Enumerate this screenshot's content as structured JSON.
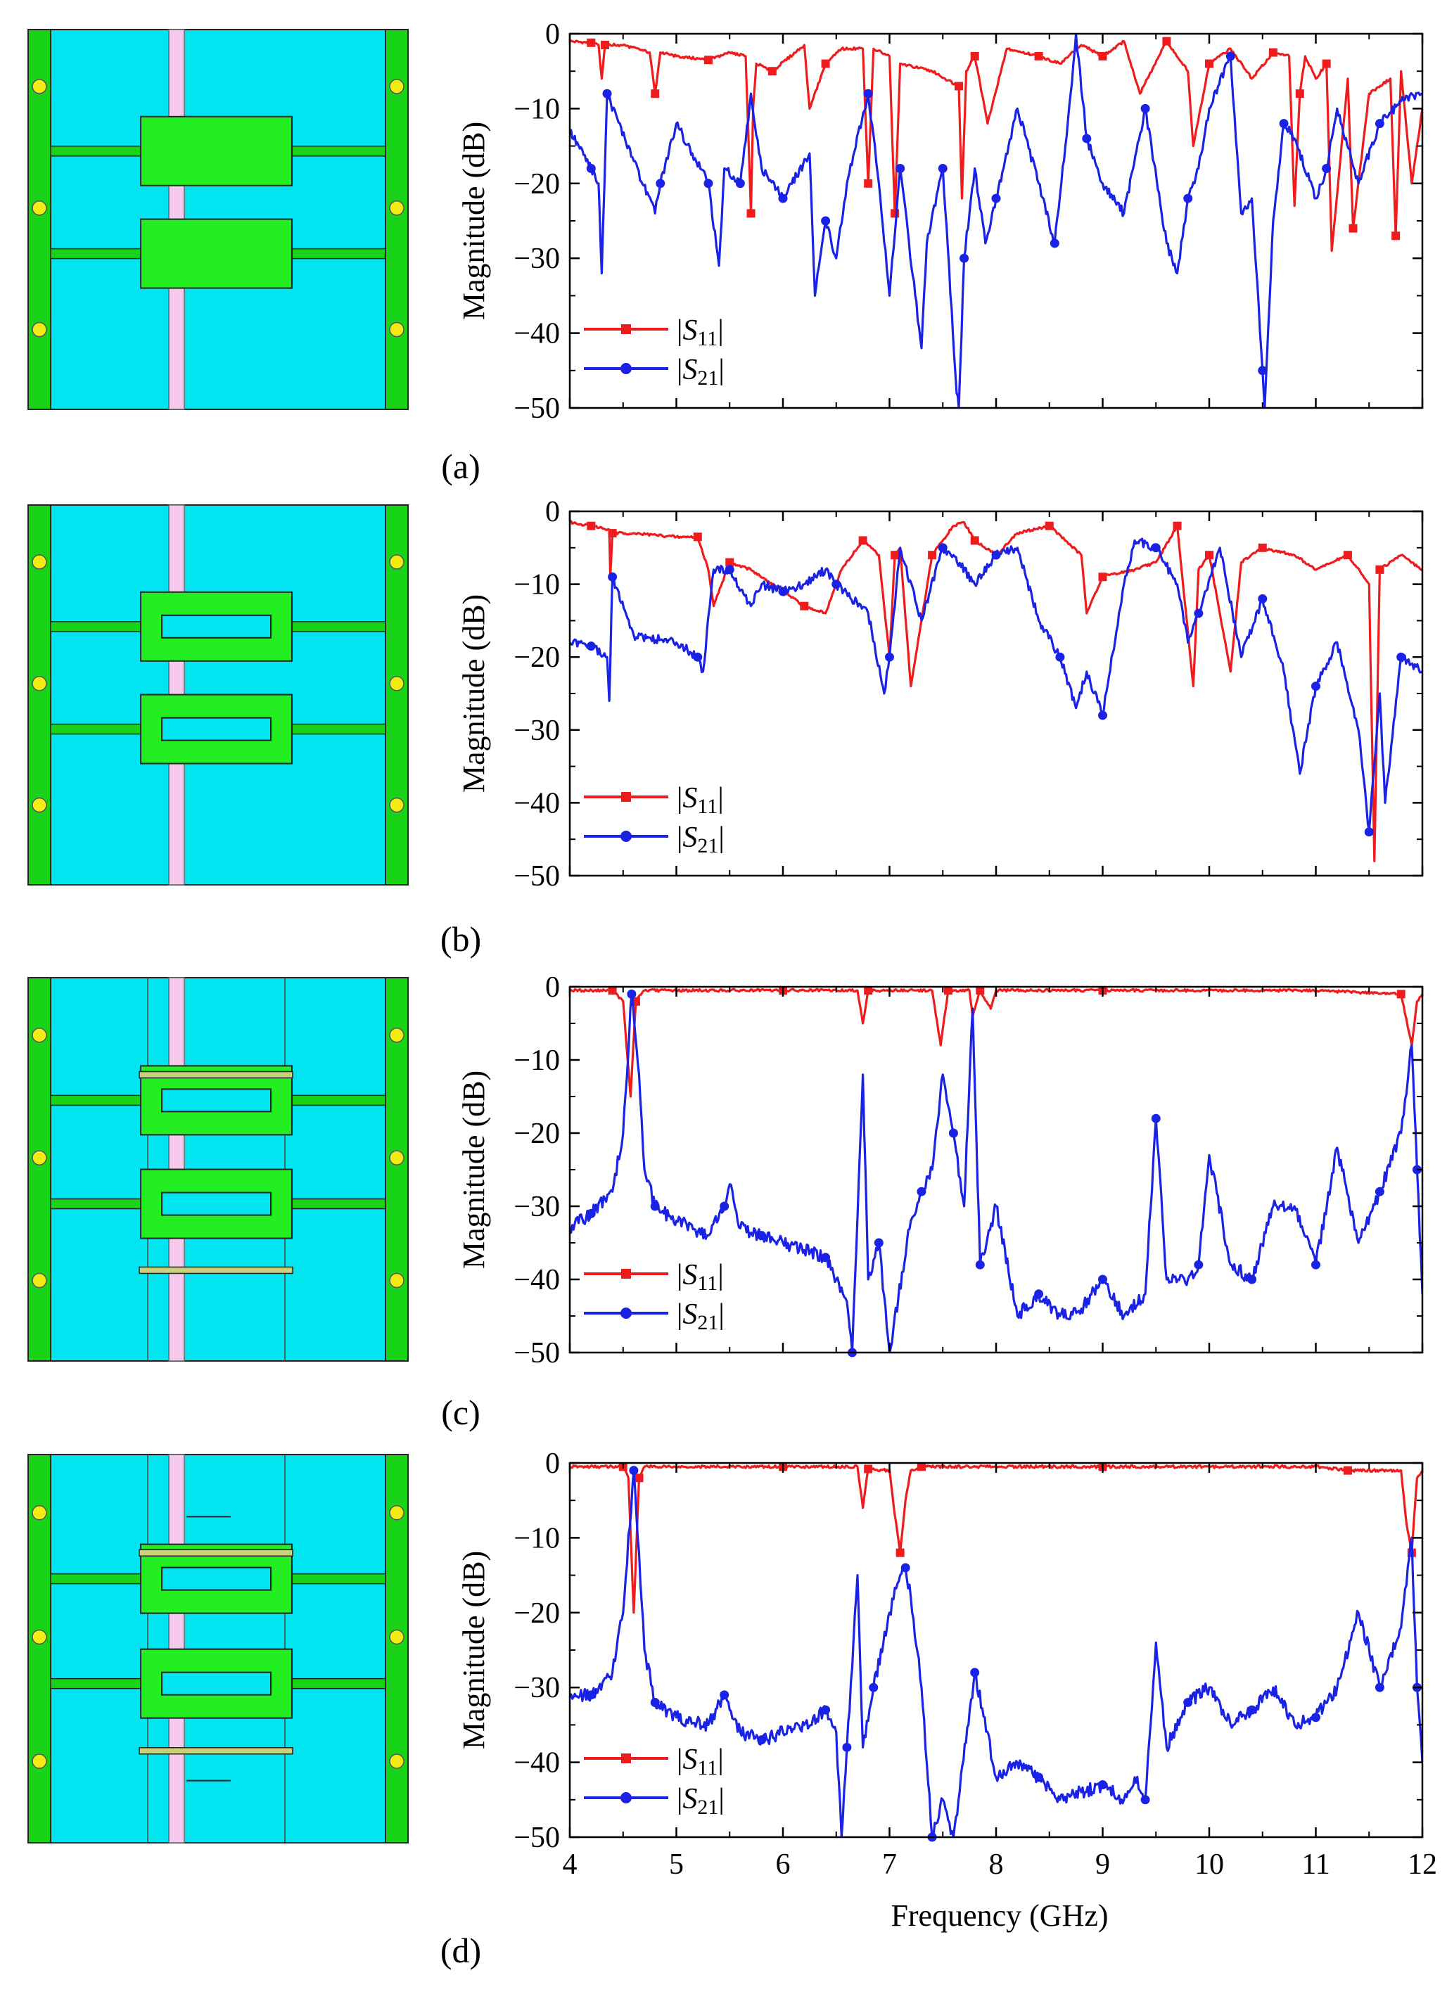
{
  "figure": {
    "xlabel": "Frequency (GHz)",
    "ylabel": "Magnitude (dB)",
    "colors": {
      "s11": "#ee1c1c",
      "s21": "#1a22e6",
      "substrate": "#00e5f0",
      "rail": "#19d319",
      "patch": "#22ee22",
      "strip": "#f5c8ee",
      "via": "#f2ec14",
      "bar": "#c9d27a"
    },
    "legend": {
      "s11_label": "|S",
      "s11_sub": "11",
      "s21_label": "|S",
      "s21_sub": "21",
      "close": "|"
    }
  },
  "chart_data": [
    {
      "panel": "(a)",
      "type": "line",
      "xlim": [
        4,
        12
      ],
      "ylim": [
        -50,
        0
      ],
      "xticks": [
        4,
        5,
        6,
        7,
        8,
        9,
        10,
        11,
        12
      ],
      "yticks": [
        0,
        -10,
        -20,
        -30,
        -40,
        -50
      ],
      "xlabel": "",
      "ylabel": "Magnitude (dB)",
      "series": [
        {
          "name": "|S11|",
          "x": [
            4.0,
            4.2,
            4.27,
            4.3,
            4.33,
            4.5,
            4.75,
            4.8,
            4.85,
            5.0,
            5.3,
            5.5,
            5.65,
            5.7,
            5.72,
            5.75,
            5.9,
            6.2,
            6.25,
            6.4,
            6.55,
            6.75,
            6.8,
            6.85,
            7.0,
            7.05,
            7.1,
            7.4,
            7.65,
            7.68,
            7.72,
            7.8,
            7.92,
            8.1,
            8.4,
            8.6,
            8.8,
            9.0,
            9.2,
            9.35,
            9.6,
            9.8,
            9.85,
            10.0,
            10.2,
            10.4,
            10.6,
            10.75,
            10.8,
            10.85,
            10.9,
            11.0,
            11.1,
            11.15,
            11.3,
            11.35,
            11.5,
            11.7,
            11.75,
            11.8,
            11.9,
            12.0
          ],
          "y": [
            -1.0,
            -1.2,
            -1.5,
            -6.0,
            -1.5,
            -1.5,
            -2.5,
            -8.0,
            -2.5,
            -3.0,
            -3.5,
            -2.5,
            -3.0,
            -24.0,
            -10.0,
            -4.0,
            -5.0,
            -1.5,
            -10.0,
            -4.0,
            -2.0,
            -2.0,
            -20.0,
            -2.0,
            -3.0,
            -24.0,
            -4.0,
            -5.0,
            -7.0,
            -22.0,
            -5.0,
            -3.0,
            -12.0,
            -2.0,
            -3.0,
            -4.0,
            -1.5,
            -3.0,
            -1.0,
            -8.0,
            -1.0,
            -5.0,
            -15.0,
            -4.0,
            -2.0,
            -6.0,
            -2.5,
            -3.0,
            -23.0,
            -8.0,
            -3.0,
            -6.0,
            -4.0,
            -29.0,
            -6.0,
            -26.0,
            -8.0,
            -6.0,
            -27.0,
            -5.0,
            -20.0,
            -10.0
          ]
        },
        {
          "name": "|S21|",
          "x": [
            4.0,
            4.2,
            4.27,
            4.3,
            4.35,
            4.6,
            4.8,
            4.85,
            5.0,
            5.15,
            5.3,
            5.4,
            5.45,
            5.6,
            5.7,
            5.8,
            6.0,
            6.25,
            6.3,
            6.4,
            6.5,
            6.6,
            6.8,
            6.9,
            7.0,
            7.1,
            7.3,
            7.35,
            7.5,
            7.63,
            7.65,
            7.7,
            7.8,
            7.9,
            8.0,
            8.2,
            8.4,
            8.55,
            8.7,
            8.75,
            8.85,
            9.0,
            9.2,
            9.4,
            9.6,
            9.7,
            9.8,
            9.9,
            10.0,
            10.2,
            10.3,
            10.4,
            10.5,
            10.52,
            10.6,
            10.7,
            10.8,
            11.0,
            11.1,
            11.2,
            11.4,
            11.6,
            11.8,
            12.0
          ],
          "y": [
            -13.0,
            -18.0,
            -20.0,
            -32.0,
            -8.0,
            -17.0,
            -24.0,
            -20.0,
            -12.0,
            -16.0,
            -20.0,
            -31.0,
            -18.0,
            -20.0,
            -8.0,
            -18.0,
            -22.0,
            -16.0,
            -35.0,
            -25.0,
            -30.0,
            -20.0,
            -8.0,
            -20.0,
            -35.0,
            -18.0,
            -42.0,
            -28.0,
            -18.0,
            -48.0,
            -50.0,
            -30.0,
            -18.0,
            -28.0,
            -22.0,
            -10.0,
            -20.0,
            -28.0,
            -8.0,
            0.0,
            -14.0,
            -20.0,
            -24.0,
            -10.0,
            -28.0,
            -32.0,
            -22.0,
            -18.0,
            -10.0,
            -3.0,
            -24.0,
            -22.0,
            -45.0,
            -50.0,
            -25.0,
            -12.0,
            -14.0,
            -22.0,
            -18.0,
            -10.0,
            -20.0,
            -12.0,
            -9.0,
            -8.0
          ]
        }
      ]
    },
    {
      "panel": "(b)",
      "type": "line",
      "xlim": [
        4,
        12
      ],
      "ylim": [
        -50,
        0
      ],
      "xticks": [
        4,
        5,
        6,
        7,
        8,
        9,
        10,
        11,
        12
      ],
      "yticks": [
        0,
        -10,
        -20,
        -30,
        -40,
        -50
      ],
      "xlabel": "",
      "ylabel": "Magnitude (dB)",
      "series": [
        {
          "name": "|S11|",
          "x": [
            4.0,
            4.2,
            4.37,
            4.38,
            4.4,
            4.6,
            5.0,
            5.2,
            5.3,
            5.35,
            5.5,
            5.7,
            5.9,
            6.2,
            6.4,
            6.55,
            6.75,
            6.9,
            7.0,
            7.05,
            7.1,
            7.2,
            7.4,
            7.6,
            7.7,
            7.8,
            8.0,
            8.2,
            8.5,
            8.8,
            8.85,
            9.0,
            9.3,
            9.5,
            9.7,
            9.85,
            9.9,
            10.0,
            10.2,
            10.3,
            10.5,
            10.8,
            11.0,
            11.3,
            11.5,
            11.55,
            11.6,
            11.8,
            12.0
          ],
          "y": [
            -1.5,
            -2.0,
            -2.5,
            -9.0,
            -3.0,
            -3.0,
            -3.5,
            -3.5,
            -8.0,
            -13.0,
            -7.0,
            -8.0,
            -10.0,
            -13.0,
            -14.0,
            -8.0,
            -4.0,
            -6.0,
            -20.0,
            -6.0,
            -5.0,
            -24.0,
            -6.0,
            -2.0,
            -1.5,
            -4.0,
            -6.0,
            -3.0,
            -2.0,
            -6.0,
            -14.0,
            -9.0,
            -8.0,
            -7.0,
            -2.0,
            -24.0,
            -8.0,
            -6.0,
            -22.0,
            -7.0,
            -5.0,
            -6.0,
            -8.0,
            -6.0,
            -10.0,
            -48.0,
            -8.0,
            -6.0,
            -8.0
          ]
        },
        {
          "name": "|S21|",
          "x": [
            4.0,
            4.2,
            4.35,
            4.37,
            4.4,
            4.6,
            5.0,
            5.2,
            5.25,
            5.35,
            5.5,
            5.7,
            5.8,
            6.0,
            6.2,
            6.4,
            6.5,
            6.8,
            6.95,
            7.0,
            7.1,
            7.3,
            7.5,
            7.6,
            7.8,
            8.0,
            8.2,
            8.4,
            8.6,
            8.75,
            8.85,
            9.0,
            9.2,
            9.3,
            9.5,
            9.7,
            9.8,
            9.9,
            10.1,
            10.3,
            10.5,
            10.7,
            10.85,
            11.0,
            11.2,
            11.4,
            11.5,
            11.6,
            11.65,
            11.8,
            12.0
          ],
          "y": [
            -18.0,
            -18.5,
            -20.0,
            -26.0,
            -9.0,
            -17.0,
            -18.0,
            -20.0,
            -22.0,
            -8.0,
            -8.0,
            -13.0,
            -10.0,
            -11.0,
            -10.0,
            -8.0,
            -10.0,
            -14.0,
            -25.0,
            -20.0,
            -5.0,
            -15.0,
            -5.0,
            -6.0,
            -10.0,
            -6.0,
            -5.0,
            -15.0,
            -20.0,
            -27.0,
            -22.0,
            -28.0,
            -10.0,
            -4.0,
            -5.0,
            -10.0,
            -18.0,
            -14.0,
            -5.0,
            -20.0,
            -12.0,
            -22.0,
            -36.0,
            -24.0,
            -18.0,
            -30.0,
            -44.0,
            -25.0,
            -40.0,
            -20.0,
            -22.0
          ]
        }
      ]
    },
    {
      "panel": "(c)",
      "type": "line",
      "xlim": [
        4,
        12
      ],
      "ylim": [
        -50,
        0
      ],
      "xticks": [
        4,
        5,
        6,
        7,
        8,
        9,
        10,
        11,
        12
      ],
      "yticks": [
        0,
        -10,
        -20,
        -30,
        -40,
        -50
      ],
      "xlabel": "",
      "ylabel": "Magnitude (dB)",
      "series": [
        {
          "name": "|S11|",
          "x": [
            4.0,
            4.4,
            4.5,
            4.57,
            4.62,
            4.7,
            5.0,
            6.0,
            6.7,
            6.75,
            6.8,
            7.4,
            7.48,
            7.55,
            7.75,
            7.78,
            7.85,
            7.95,
            8.0,
            9.0,
            10.0,
            11.0,
            11.8,
            11.9,
            11.95,
            12.0
          ],
          "y": [
            -0.5,
            -0.5,
            -2.0,
            -15.0,
            -2.0,
            -0.5,
            -0.5,
            -0.5,
            -0.5,
            -5.0,
            -0.5,
            -0.5,
            -8.0,
            -0.5,
            -0.5,
            -4.0,
            -0.5,
            -3.0,
            -0.5,
            -0.5,
            -0.5,
            -0.5,
            -1.0,
            -8.0,
            -2.0,
            -1.0
          ]
        },
        {
          "name": "|S21|",
          "x": [
            4.0,
            4.2,
            4.4,
            4.5,
            4.58,
            4.65,
            4.7,
            4.8,
            5.0,
            5.3,
            5.45,
            5.5,
            5.6,
            5.8,
            6.0,
            6.2,
            6.4,
            6.5,
            6.6,
            6.65,
            6.75,
            6.8,
            6.9,
            7.0,
            7.2,
            7.3,
            7.4,
            7.5,
            7.6,
            7.7,
            7.78,
            7.85,
            8.0,
            8.2,
            8.4,
            8.6,
            8.8,
            9.0,
            9.2,
            9.4,
            9.5,
            9.6,
            9.8,
            9.9,
            10.0,
            10.2,
            10.4,
            10.6,
            10.8,
            11.0,
            11.2,
            11.4,
            11.6,
            11.8,
            11.9,
            11.95,
            12.0
          ],
          "y": [
            -33.0,
            -31.0,
            -28.0,
            -20.0,
            -1.0,
            -12.0,
            -25.0,
            -30.0,
            -32.0,
            -34.0,
            -30.0,
            -27.0,
            -33.0,
            -34.0,
            -35.0,
            -36.0,
            -37.0,
            -40.0,
            -43.0,
            -50.0,
            -12.0,
            -40.0,
            -35.0,
            -50.0,
            -32.0,
            -28.0,
            -25.0,
            -12.0,
            -20.0,
            -30.0,
            -3.0,
            -38.0,
            -30.0,
            -45.0,
            -42.0,
            -45.0,
            -44.0,
            -40.0,
            -45.0,
            -42.0,
            -18.0,
            -40.0,
            -40.0,
            -38.0,
            -23.0,
            -38.0,
            -40.0,
            -30.0,
            -30.0,
            -38.0,
            -22.0,
            -35.0,
            -28.0,
            -20.0,
            -8.0,
            -25.0,
            -42.0
          ]
        }
      ]
    },
    {
      "panel": "(d)",
      "type": "line",
      "xlim": [
        4,
        12
      ],
      "ylim": [
        -50,
        0
      ],
      "xticks": [
        4,
        5,
        6,
        7,
        8,
        9,
        10,
        11,
        12
      ],
      "yticks": [
        0,
        -10,
        -20,
        -30,
        -40,
        -50
      ],
      "xlabel": "Frequency (GHz)",
      "ylabel": "Magnitude (dB)",
      "series": [
        {
          "name": "|S11|",
          "x": [
            4.0,
            4.5,
            4.55,
            4.6,
            4.65,
            4.7,
            5.0,
            6.0,
            6.7,
            6.75,
            6.8,
            7.0,
            7.05,
            7.1,
            7.15,
            7.2,
            7.3,
            7.5,
            8.0,
            9.0,
            10.0,
            11.0,
            11.3,
            11.8,
            11.85,
            11.9,
            11.95,
            12.0
          ],
          "y": [
            -0.5,
            -0.5,
            -2.0,
            -20.0,
            -2.0,
            -0.5,
            -0.5,
            -0.5,
            -0.5,
            -6.0,
            -0.8,
            -1.0,
            -7.0,
            -12.0,
            -5.0,
            -1.0,
            -0.5,
            -0.5,
            -0.5,
            -0.5,
            -0.5,
            -0.5,
            -1.0,
            -1.0,
            -8.0,
            -12.0,
            -2.0,
            -1.0
          ]
        },
        {
          "name": "|S21|",
          "x": [
            4.0,
            4.2,
            4.4,
            4.5,
            4.6,
            4.65,
            4.7,
            4.8,
            5.0,
            5.3,
            5.45,
            5.5,
            5.6,
            5.8,
            6.0,
            6.2,
            6.4,
            6.5,
            6.55,
            6.6,
            6.7,
            6.75,
            6.85,
            7.0,
            7.1,
            7.15,
            7.2,
            7.3,
            7.4,
            7.5,
            7.6,
            7.8,
            8.0,
            8.2,
            8.4,
            8.6,
            8.8,
            9.0,
            9.2,
            9.3,
            9.4,
            9.5,
            9.6,
            9.8,
            10.0,
            10.2,
            10.4,
            10.6,
            10.8,
            11.0,
            11.2,
            11.4,
            11.6,
            11.8,
            11.9,
            11.95,
            12.0
          ],
          "y": [
            -31.0,
            -31.0,
            -28.0,
            -20.0,
            -1.0,
            -12.0,
            -25.0,
            -32.0,
            -34.0,
            -35.0,
            -31.0,
            -33.0,
            -36.0,
            -37.0,
            -36.0,
            -35.0,
            -33.0,
            -36.0,
            -50.0,
            -38.0,
            -15.0,
            -38.0,
            -30.0,
            -20.0,
            -15.0,
            -14.0,
            -18.0,
            -30.0,
            -50.0,
            -45.0,
            -50.0,
            -28.0,
            -42.0,
            -40.0,
            -42.0,
            -45.0,
            -44.0,
            -43.0,
            -45.0,
            -42.0,
            -45.0,
            -24.0,
            -38.0,
            -32.0,
            -30.0,
            -35.0,
            -33.0,
            -30.0,
            -35.0,
            -34.0,
            -30.0,
            -20.0,
            -30.0,
            -22.0,
            -10.0,
            -30.0,
            -40.0
          ]
        }
      ]
    }
  ],
  "panels": [
    {
      "letter": "(a)"
    },
    {
      "letter": "(b)"
    },
    {
      "letter": "(c)"
    },
    {
      "letter": "(d)"
    }
  ]
}
